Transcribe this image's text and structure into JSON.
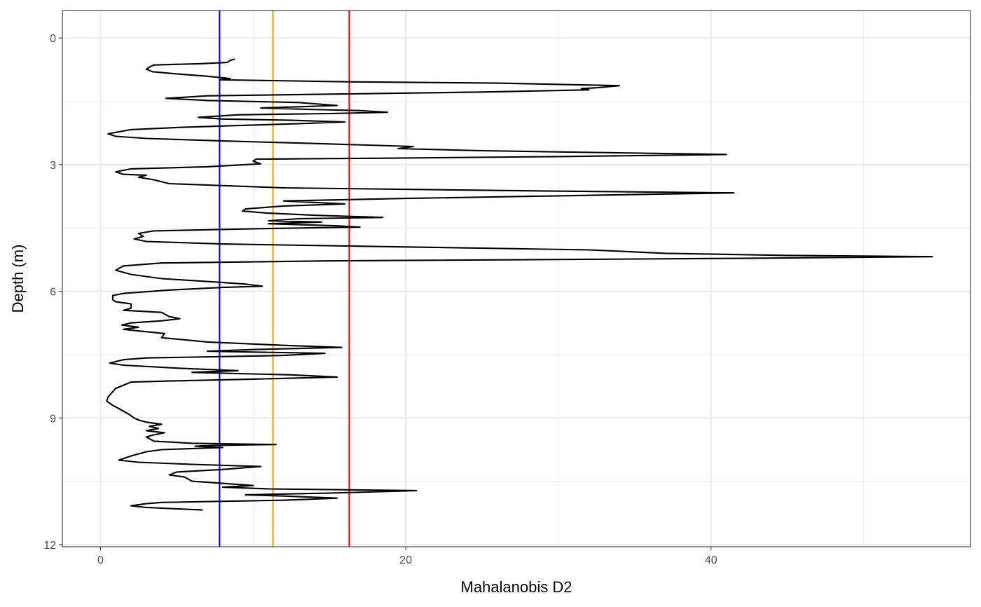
{
  "chart_data": {
    "type": "line",
    "xlabel": "Mahalanobis D2",
    "ylabel": "Depth (m)",
    "xlim": [
      -2.5,
      57
    ],
    "ylim": [
      12.05,
      -0.65
    ],
    "y_reversed": true,
    "x_ticks": [
      0,
      20,
      40
    ],
    "x_minor_ticks": [
      10,
      30,
      50
    ],
    "y_ticks": [
      0,
      3,
      6,
      9,
      12
    ],
    "y_minor_ticks": [
      1.5,
      4.5,
      7.5,
      10.5
    ],
    "grid": true,
    "reference_lines": [
      {
        "x": 7.8,
        "color": "#0000ff"
      },
      {
        "x": 11.3,
        "color": "#ffa500"
      },
      {
        "x": 16.3,
        "color": "#ff0000"
      }
    ],
    "series_color": "#000000",
    "series": [
      {
        "points": [
          [
            8.8,
            0.5
          ],
          [
            8.5,
            0.53
          ],
          [
            8.3,
            0.58
          ],
          [
            6.5,
            0.61
          ],
          [
            3.5,
            0.64
          ],
          [
            3.2,
            0.69
          ],
          [
            3.0,
            0.74
          ],
          [
            3.4,
            0.8
          ],
          [
            5.0,
            0.85
          ],
          [
            6.8,
            0.9
          ],
          [
            8.5,
            0.96
          ],
          [
            7.8,
            0.99
          ],
          [
            9.5,
            1.0
          ],
          [
            16.5,
            1.04
          ],
          [
            26.0,
            1.07
          ],
          [
            34.0,
            1.13
          ],
          [
            32.5,
            1.18
          ],
          [
            31.5,
            1.2
          ],
          [
            32.0,
            1.23
          ],
          [
            25.0,
            1.28
          ],
          [
            15.0,
            1.33
          ],
          [
            7.0,
            1.37
          ],
          [
            4.3,
            1.43
          ],
          [
            7.0,
            1.48
          ],
          [
            13.0,
            1.53
          ],
          [
            15.5,
            1.6
          ],
          [
            13.0,
            1.63
          ],
          [
            10.5,
            1.66
          ],
          [
            13.5,
            1.69
          ],
          [
            17.0,
            1.72
          ],
          [
            18.8,
            1.76
          ],
          [
            15.0,
            1.79
          ],
          [
            9.0,
            1.82
          ],
          [
            6.4,
            1.88
          ],
          [
            8.0,
            1.92
          ],
          [
            12.5,
            1.95
          ],
          [
            16.0,
            1.99
          ],
          [
            13.0,
            2.03
          ],
          [
            8.5,
            2.08
          ],
          [
            5.0,
            2.12
          ],
          [
            2.0,
            2.17
          ],
          [
            0.5,
            2.27
          ],
          [
            1.0,
            2.33
          ],
          [
            3.0,
            2.38
          ],
          [
            8.0,
            2.44
          ],
          [
            14.0,
            2.5
          ],
          [
            20.5,
            2.57
          ],
          [
            19.5,
            2.62
          ],
          [
            25.0,
            2.67
          ],
          [
            41.0,
            2.76
          ],
          [
            30.0,
            2.81
          ],
          [
            18.0,
            2.85
          ],
          [
            10.2,
            2.87
          ],
          [
            10.0,
            2.92
          ],
          [
            10.5,
            2.98
          ],
          [
            7.0,
            3.05
          ],
          [
            2.0,
            3.1
          ],
          [
            1.0,
            3.17
          ],
          [
            1.5,
            3.23
          ],
          [
            3.0,
            3.25
          ],
          [
            2.5,
            3.3
          ],
          [
            3.5,
            3.36
          ],
          [
            4.5,
            3.45
          ],
          [
            12.0,
            3.55
          ],
          [
            28.0,
            3.62
          ],
          [
            41.5,
            3.67
          ],
          [
            30.0,
            3.74
          ],
          [
            20.0,
            3.8
          ],
          [
            12.0,
            3.86
          ],
          [
            16.0,
            3.93
          ],
          [
            12.0,
            3.98
          ],
          [
            9.5,
            4.05
          ],
          [
            9.3,
            4.1
          ],
          [
            11.0,
            4.15
          ],
          [
            14.0,
            4.2
          ],
          [
            18.5,
            4.25
          ],
          [
            13.0,
            4.28
          ],
          [
            11.0,
            4.33
          ],
          [
            14.5,
            4.36
          ],
          [
            11.0,
            4.4
          ],
          [
            15.5,
            4.45
          ],
          [
            17.0,
            4.48
          ],
          [
            10.0,
            4.52
          ],
          [
            3.5,
            4.57
          ],
          [
            2.5,
            4.63
          ],
          [
            2.8,
            4.7
          ],
          [
            2.2,
            4.76
          ],
          [
            3.0,
            4.82
          ],
          [
            8.0,
            4.88
          ],
          [
            20.0,
            4.95
          ],
          [
            32.0,
            5.02
          ],
          [
            37.0,
            5.1
          ],
          [
            45.0,
            5.15
          ],
          [
            54.5,
            5.18
          ],
          [
            42.0,
            5.22
          ],
          [
            15.0,
            5.28
          ],
          [
            4.0,
            5.33
          ],
          [
            1.5,
            5.4
          ],
          [
            1.0,
            5.5
          ],
          [
            2.0,
            5.6
          ],
          [
            4.0,
            5.7
          ],
          [
            7.5,
            5.78
          ],
          [
            9.5,
            5.83
          ],
          [
            10.6,
            5.88
          ],
          [
            8.0,
            5.91
          ],
          [
            4.5,
            5.97
          ],
          [
            1.5,
            6.05
          ],
          [
            0.8,
            6.1
          ],
          [
            0.8,
            6.2
          ],
          [
            1.0,
            6.25
          ],
          [
            2.0,
            6.3
          ],
          [
            2.0,
            6.4
          ],
          [
            1.5,
            6.45
          ],
          [
            4.0,
            6.5
          ],
          [
            4.5,
            6.6
          ],
          [
            5.2,
            6.65
          ],
          [
            4.0,
            6.7
          ],
          [
            2.0,
            6.75
          ],
          [
            1.4,
            6.8
          ],
          [
            2.5,
            6.85
          ],
          [
            1.5,
            6.9
          ],
          [
            2.8,
            6.95
          ],
          [
            4.2,
            7.0
          ],
          [
            4.0,
            7.1
          ],
          [
            7.0,
            7.2
          ],
          [
            12.0,
            7.28
          ],
          [
            15.8,
            7.33
          ],
          [
            10.0,
            7.38
          ],
          [
            7.0,
            7.42
          ],
          [
            14.7,
            7.47
          ],
          [
            12.0,
            7.52
          ],
          [
            3.0,
            7.58
          ],
          [
            1.5,
            7.62
          ],
          [
            0.6,
            7.7
          ],
          [
            1.5,
            7.75
          ],
          [
            5.0,
            7.82
          ],
          [
            9.0,
            7.88
          ],
          [
            6.0,
            7.92
          ],
          [
            9.0,
            7.95
          ],
          [
            12.5,
            7.98
          ],
          [
            15.5,
            8.03
          ],
          [
            10.0,
            8.08
          ],
          [
            5.0,
            8.12
          ],
          [
            2.0,
            8.15
          ],
          [
            1.0,
            8.3
          ],
          [
            0.5,
            8.5
          ],
          [
            0.4,
            8.6
          ],
          [
            0.8,
            8.7
          ],
          [
            1.3,
            8.8
          ],
          [
            1.8,
            8.9
          ],
          [
            2.2,
            9.0
          ],
          [
            2.5,
            9.05
          ],
          [
            3.0,
            9.1
          ],
          [
            4.0,
            9.15
          ],
          [
            3.2,
            9.2
          ],
          [
            3.8,
            9.25
          ],
          [
            3.0,
            9.3
          ],
          [
            4.2,
            9.35
          ],
          [
            3.5,
            9.4
          ],
          [
            3.0,
            9.45
          ],
          [
            3.5,
            9.55
          ],
          [
            6.0,
            9.6
          ],
          [
            11.5,
            9.63
          ],
          [
            7.5,
            9.65
          ],
          [
            6.2,
            9.67
          ],
          [
            8.0,
            9.7
          ],
          [
            4.0,
            9.75
          ],
          [
            3.0,
            9.8
          ],
          [
            2.0,
            9.9
          ],
          [
            1.2,
            10.0
          ],
          [
            2.5,
            10.05
          ],
          [
            6.0,
            10.1
          ],
          [
            10.5,
            10.15
          ],
          [
            8.0,
            10.22
          ],
          [
            5.0,
            10.28
          ],
          [
            4.5,
            10.35
          ],
          [
            5.5,
            10.4
          ],
          [
            6.0,
            10.5
          ],
          [
            8.0,
            10.55
          ],
          [
            10.0,
            10.6
          ],
          [
            8.0,
            10.64
          ],
          [
            11.0,
            10.68
          ],
          [
            20.7,
            10.72
          ],
          [
            15.0,
            10.78
          ],
          [
            9.5,
            10.82
          ],
          [
            12.0,
            10.85
          ],
          [
            15.5,
            10.9
          ],
          [
            12.0,
            10.95
          ],
          [
            4.0,
            11.0
          ],
          [
            3.0,
            11.03
          ],
          [
            2.0,
            11.08
          ],
          [
            3.0,
            11.12
          ],
          [
            6.7,
            11.18
          ]
        ]
      }
    ]
  }
}
